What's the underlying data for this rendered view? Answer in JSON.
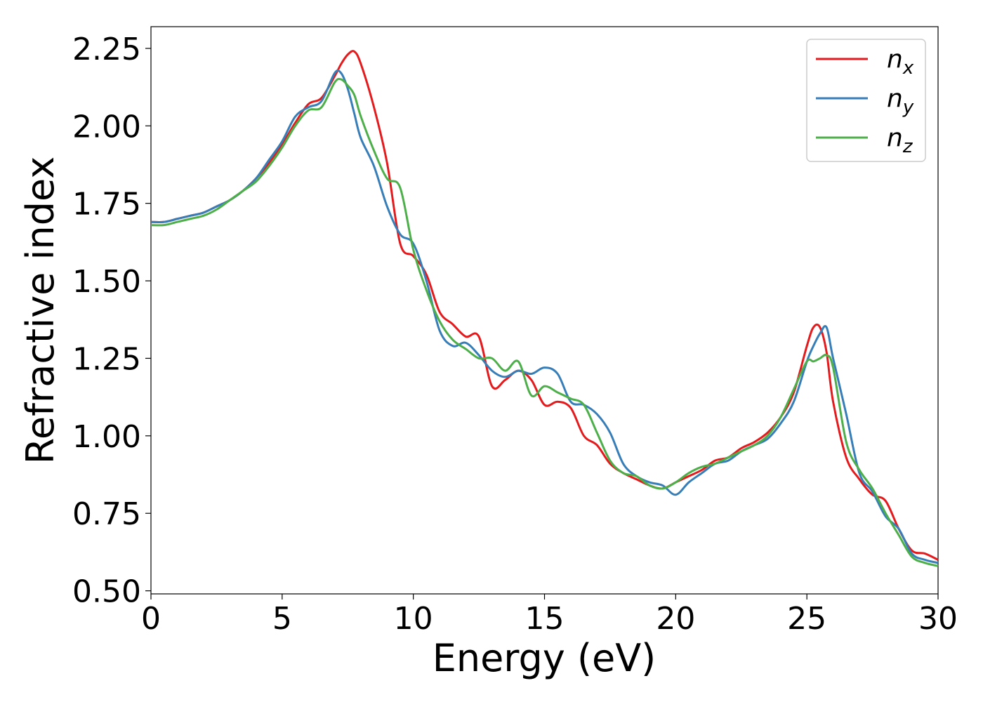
{
  "chart_data": {
    "type": "line",
    "xlabel": "Energy (eV)",
    "ylabel": "Refractive index",
    "xlim": [
      0,
      30
    ],
    "ylim": [
      0.49,
      2.32
    ],
    "xticks": [
      0,
      5,
      10,
      15,
      20,
      25,
      30
    ],
    "xtick_labels": [
      "0",
      "5",
      "10",
      "15",
      "20",
      "25",
      "30"
    ],
    "yticks": [
      0.5,
      0.75,
      1.0,
      1.25,
      1.5,
      1.75,
      2.0,
      2.25
    ],
    "ytick_labels": [
      "0.50",
      "0.75",
      "1.00",
      "1.25",
      "1.50",
      "1.75",
      "2.00",
      "2.25"
    ],
    "grid": false,
    "legend_position": "top-right",
    "x": [
      0,
      0.5,
      1,
      1.5,
      2,
      2.5,
      3,
      3.5,
      4,
      4.5,
      5,
      5.5,
      6,
      6.5,
      7,
      7.25,
      7.5,
      7.75,
      8,
      8.5,
      9,
      9.5,
      10,
      10.5,
      11,
      11.5,
      12,
      12.5,
      13,
      13.5,
      14,
      14.5,
      15,
      15.5,
      16,
      16.5,
      17,
      17.5,
      18,
      18.5,
      19,
      19.5,
      20,
      20.5,
      21,
      21.5,
      22,
      22.5,
      23,
      23.5,
      24,
      24.5,
      25,
      25.25,
      25.5,
      25.75,
      26,
      26.5,
      27,
      27.5,
      28,
      28.5,
      29,
      29.5,
      30
    ],
    "series": [
      {
        "name": "n",
        "subscript": "x",
        "color": "#e41a1c",
        "values": [
          1.69,
          1.69,
          1.7,
          1.71,
          1.72,
          1.74,
          1.76,
          1.79,
          1.83,
          1.88,
          1.94,
          2.01,
          2.07,
          2.09,
          2.16,
          2.2,
          2.23,
          2.24,
          2.2,
          2.06,
          1.88,
          1.62,
          1.58,
          1.52,
          1.4,
          1.36,
          1.32,
          1.32,
          1.16,
          1.18,
          1.21,
          1.18,
          1.1,
          1.11,
          1.09,
          1.0,
          0.97,
          0.91,
          0.88,
          0.86,
          0.84,
          0.83,
          0.85,
          0.87,
          0.89,
          0.92,
          0.93,
          0.96,
          0.98,
          1.01,
          1.06,
          1.14,
          1.29,
          1.35,
          1.35,
          1.27,
          1.11,
          0.93,
          0.86,
          0.81,
          0.79,
          0.7,
          0.63,
          0.62,
          0.6
        ]
      },
      {
        "name": "n",
        "subscript": "y",
        "color": "#377eb8",
        "values": [
          1.69,
          1.69,
          1.7,
          1.71,
          1.72,
          1.74,
          1.76,
          1.79,
          1.83,
          1.89,
          1.95,
          2.03,
          2.06,
          2.08,
          2.17,
          2.17,
          2.12,
          2.04,
          1.96,
          1.87,
          1.74,
          1.65,
          1.62,
          1.5,
          1.34,
          1.29,
          1.3,
          1.26,
          1.21,
          1.19,
          1.21,
          1.2,
          1.22,
          1.2,
          1.11,
          1.1,
          1.07,
          1.01,
          0.91,
          0.87,
          0.85,
          0.84,
          0.81,
          0.85,
          0.88,
          0.91,
          0.92,
          0.95,
          0.97,
          0.99,
          1.04,
          1.11,
          1.24,
          1.29,
          1.33,
          1.35,
          1.25,
          1.07,
          0.88,
          0.82,
          0.74,
          0.7,
          0.62,
          0.6,
          0.59
        ]
      },
      {
        "name": "n",
        "subscript": "z",
        "color": "#4daf4a",
        "values": [
          1.68,
          1.68,
          1.69,
          1.7,
          1.71,
          1.73,
          1.76,
          1.79,
          1.82,
          1.87,
          1.93,
          2.0,
          2.05,
          2.06,
          2.14,
          2.15,
          2.13,
          2.1,
          2.03,
          1.92,
          1.83,
          1.8,
          1.6,
          1.47,
          1.37,
          1.31,
          1.28,
          1.25,
          1.25,
          1.21,
          1.24,
          1.13,
          1.16,
          1.14,
          1.12,
          1.1,
          1.01,
          0.92,
          0.88,
          0.87,
          0.84,
          0.83,
          0.85,
          0.88,
          0.9,
          0.91,
          0.93,
          0.95,
          0.97,
          1.0,
          1.06,
          1.15,
          1.24,
          1.24,
          1.25,
          1.26,
          1.22,
          0.98,
          0.89,
          0.83,
          0.75,
          0.68,
          0.61,
          0.59,
          0.58
        ]
      }
    ]
  }
}
